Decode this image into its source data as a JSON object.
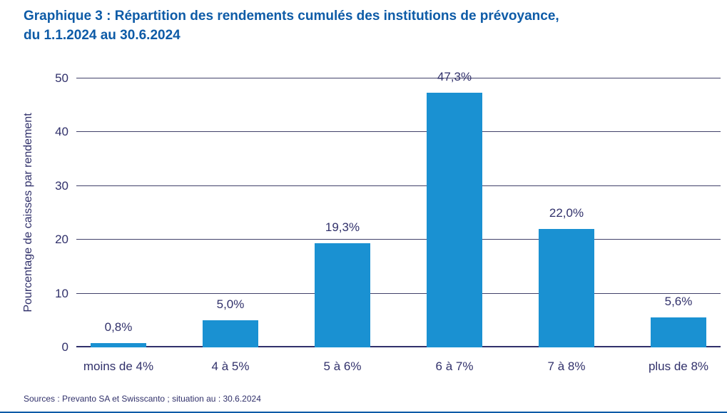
{
  "header": {
    "title_line1": "Graphique 3 : Répartition des rendements cumulés des institutions de prévoyance,",
    "title_line2": "du 1.1.2024 au 30.6.2024"
  },
  "chart_data": {
    "type": "bar",
    "title": "Graphique 3 : Répartition des rendements cumulés des institutions de prévoyance, du 1.1.2024 au 30.6.2024",
    "categories": [
      "moins de 4%",
      "4 à 5%",
      "5 à 6%",
      "6 à 7%",
      "7 à 8%",
      "plus de 8%"
    ],
    "values": [
      0.8,
      5.0,
      19.3,
      47.3,
      22.0,
      5.6
    ],
    "value_labels": [
      "0,8%",
      "5,0%",
      "19,3%",
      "47,3%",
      "22,0%",
      "5,6%"
    ],
    "xlabel": "",
    "ylabel": "Pourcentage de caisses par rendement",
    "ylim": [
      0,
      50
    ],
    "yticks": [
      0,
      10,
      20,
      30,
      40,
      50
    ],
    "grid": true,
    "legend": "none",
    "bar_color": "#1a91d2"
  },
  "footer": {
    "source": "Sources : Prevanto SA et Swisscanto ; situation au : 30.6.2024"
  },
  "colors": {
    "title_blue": "#0d5ba7",
    "bar_blue": "#1a91d2",
    "text_navy": "#31316b",
    "grid_navy": "#41416a",
    "bottom_rule_blue": "#0d5ba7"
  }
}
